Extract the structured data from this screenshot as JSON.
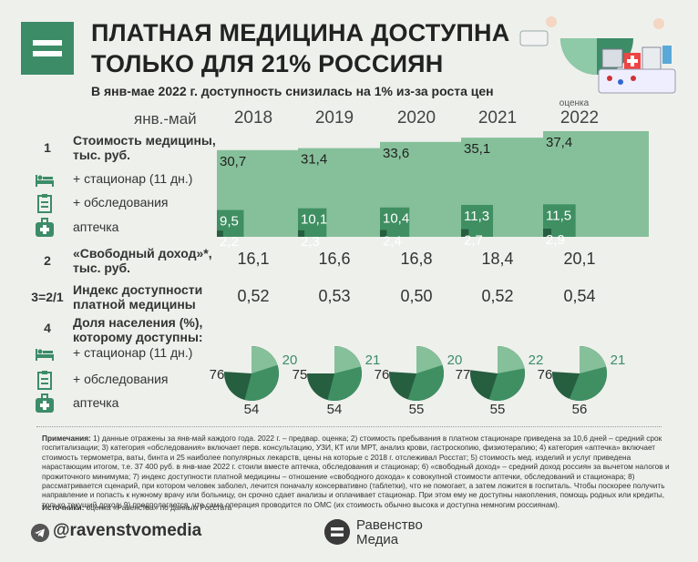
{
  "header": {
    "title_line1": "ПЛАТНАЯ МЕДИЦИНА ДОСТУПНА",
    "title_line2": "ТОЛЬКО ДЛЯ 21% РОССИЯН",
    "subtitle": "В янв-мае 2022 г. доступность снизилась на 1% из-за роста цен"
  },
  "period_label": "янв.-май",
  "years": [
    "2018",
    "2019",
    "2020",
    "2021",
    "2022"
  ],
  "estimate_note": "оценка",
  "rows": {
    "r1_num": "1",
    "r1_label_a": "Стоимость медицины,",
    "r1_label_b": "тыс. руб.",
    "r1_sub1": "+ стационар (11 дн.)",
    "r1_sub2": "+ обследования",
    "r1_sub3": "аптечка",
    "r2_num": "2",
    "r2_label_a": "«Свободный доход»*,",
    "r2_label_b": "тыс. руб.",
    "r3_num": "3=2/1",
    "r3_label_a": "Индекс доступности",
    "r3_label_b": "платной медицины",
    "r4_num": "4",
    "r4_label_a": "Доля населения (%),",
    "r4_label_b": "которому доступны:",
    "r4_sub1": "+ стационар (11 дн.)",
    "r4_sub2": "+ обследования",
    "r4_sub3": "аптечка"
  },
  "free_income": [
    "16,1",
    "16,6",
    "16,8",
    "18,4",
    "20,1"
  ],
  "access_index": [
    "0,52",
    "0,53",
    "0,50",
    "0,52",
    "0,54"
  ],
  "colors": {
    "light": "#86c09a",
    "mid": "#3f8f62",
    "dark": "#265e40",
    "accent": "#3c8c68"
  },
  "icons": [
    "hospital-bed-icon",
    "clipboard-icon",
    "first-aid-kit-icon",
    "telegram-icon"
  ],
  "chart_data": [
    {
      "type": "bar",
      "categories": [
        "2018",
        "2019",
        "2020",
        "2021",
        "2022"
      ],
      "series": [
        {
          "name": "+ стационар (11 дн.)",
          "values": [
            30.7,
            31.4,
            33.6,
            35.1,
            37.4
          ],
          "labels": [
            "30,7",
            "31,4",
            "33,6",
            "35,1",
            "37,4"
          ]
        },
        {
          "name": "+ обследования",
          "values": [
            9.5,
            10.1,
            10.4,
            11.3,
            11.5
          ],
          "labels": [
            "9,5",
            "10,1",
            "10,4",
            "11,3",
            "11,5"
          ]
        },
        {
          "name": "аптечка",
          "values": [
            2.2,
            2.3,
            2.4,
            2.7,
            2.9
          ],
          "labels": [
            "2,2",
            "2,3",
            "2,4",
            "2,7",
            "2,9"
          ]
        }
      ]
    },
    {
      "type": "pie",
      "categories": [
        "2018",
        "2019",
        "2020",
        "2021",
        "2022"
      ],
      "series": [
        {
          "name": "+ стационар (11 дн.)",
          "values": [
            20,
            21,
            20,
            22,
            21
          ]
        },
        {
          "name": "+ обследования",
          "values": [
            54,
            54,
            55,
            55,
            56
          ]
        },
        {
          "name": "аптечка",
          "values": [
            76,
            75,
            76,
            77,
            76
          ]
        }
      ]
    }
  ],
  "notes_label": "Примечания:",
  "notes_text": "1) данные отражены за янв-май каждого года. 2022 г. – предвар. оценка; 2) стоимость пребывания в платном стационаре приведена за 10,6 дней – средний срок госпитализации; 3) категория «обследования» включает перв. консультацию, УЗИ, КТ или МРТ, анализ крови, гастроскопию, физиотерапию; 4) категория «аптечка» включает стоимость термометра, ваты, бинта и 25 наиболее популярных лекарств, цены на которые с 2018 г. отслеживал Росстат; 5) стоимость мед. изделий и услуг приведена нарастающим итогом, т.е. 37 400 руб. в янв-мае 2022 г. стоили вместе аптечка, обследования и стационар; 6) «свободный доход» – средний доход россиян за вычетом налогов и прожиточного минимума; 7) индекс доступности платной медицины – отношение «свободного дохода» к совокупной стоимости аптечки, обследований и стационара; 8) рассматривается сценарий, при котором человек заболел, лечится поначалу консервативно (таблетки), что не помогает, а затем ложится в госпиталь. Чтобы поскорее получить направление и попасть к нужному врачу или больницу, он срочно сдает анализы и оплачивает стационар. При этом ему не доступны накопления, помощь родных или кредиты, только текущий доход; 9) предполагается, что сама операция проводится по ОМС (их стоимость обычно высока и доступна немногим россиянам).",
  "sources_label": "Источники:",
  "sources_text": "оценка «Равенства» по данным Росстата",
  "footer": {
    "handle": "@ravenstvomedia",
    "brand_line1": "Равенство",
    "brand_line2": "Медиа"
  }
}
